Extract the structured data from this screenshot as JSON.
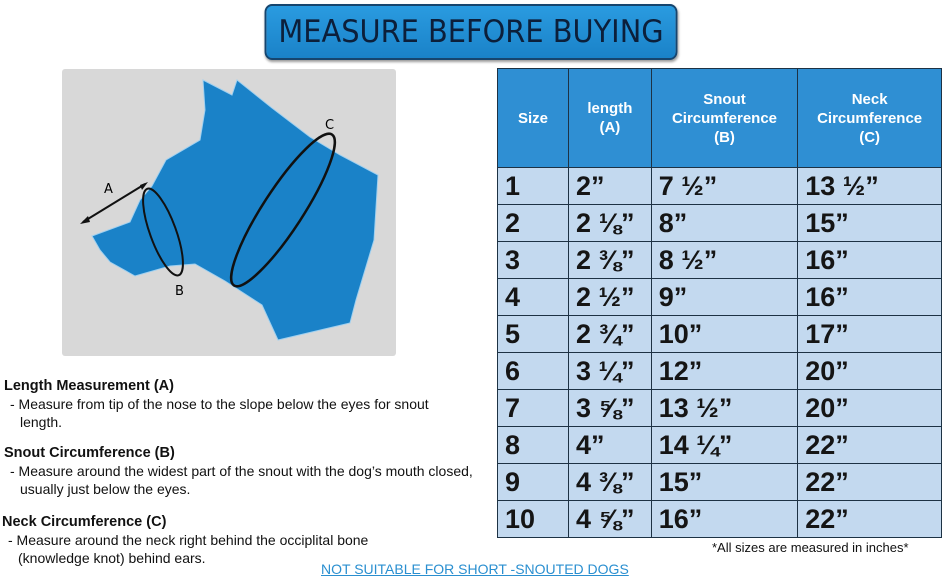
{
  "title": "MEASURE BEFORE BUYING",
  "diagram": {
    "labels": {
      "a": "A",
      "b": "B",
      "c": "C"
    },
    "colors": {
      "dog": "#1a82c8",
      "background": "#d8d8d8"
    }
  },
  "table": {
    "headers": [
      "Size",
      "length\n(A)",
      "Snout\nCircumference\n(B)",
      "Neck\nCircumference\n(C)"
    ],
    "rows": [
      [
        "1",
        "2”",
        "7 ½”",
        "13 ½”"
      ],
      [
        "2",
        "2 ⅛”",
        "8”",
        "15”"
      ],
      [
        "3",
        "2 ⅜”",
        "8 ½”",
        "16”"
      ],
      [
        "4",
        "2 ½”",
        "9”",
        "16”"
      ],
      [
        "5",
        "2 ¾”",
        "10”",
        "17”"
      ],
      [
        "6",
        "3 ¼”",
        "12”",
        "20”"
      ],
      [
        "7",
        "3 ⅝”",
        "13 ½”",
        "20”"
      ],
      [
        "8",
        "4”",
        "14 ¼”",
        "22”"
      ],
      [
        "9",
        "4 ⅜”",
        "15”",
        "22”"
      ],
      [
        "10",
        "4 ⅝”",
        "16”",
        "22”"
      ]
    ],
    "colors": {
      "header": "#2f8fd3",
      "cell": "#c3d9ef"
    }
  },
  "instructions": [
    {
      "heading": "Length Measurement (A)",
      "text": "- Measure from tip of the nose to the slope below the eyes for snout length."
    },
    {
      "heading": "Snout Circumference (B)",
      "text": "- Measure around the widest part of the snout with the dog’s mouth closed, usually just below the eyes."
    },
    {
      "heading": "Neck Circumference (C)",
      "text": "- Measure around the neck right behind the occiplital bone (knowledge knot) behind ears."
    }
  ],
  "note": "*All sizes are measured in inches*",
  "warning": "NOT SUITABLE FOR SHORT -SNOUTED DOGS"
}
